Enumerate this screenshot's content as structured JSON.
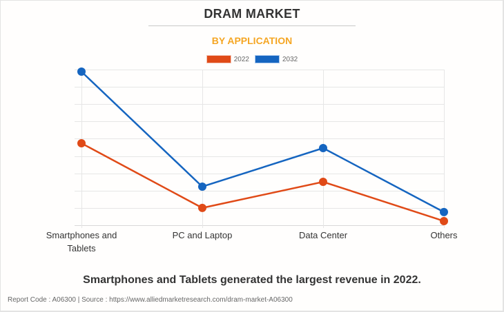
{
  "page": {
    "title": "DRAM MARKET",
    "subtitle": "BY APPLICATION",
    "summary": "Smartphones and Tablets generated the largest revenue in 2022.",
    "source_line": "Report Code : A06300  |  Source : https://www.alliedmarketresearch.com/dram-market-A06300"
  },
  "colors": {
    "series_2022": "#e04a17",
    "series_2032": "#1565c0",
    "title": "#333333",
    "subtitle": "#f5a623",
    "grid": "#e6e6e6"
  },
  "chart_data": {
    "type": "line",
    "title": "DRAM MARKET",
    "subtitle": "BY APPLICATION",
    "xlabel": "",
    "ylabel": "",
    "categories": [
      "Smartphones and Tablets",
      "PC and Laptop",
      "Data Center",
      "Others"
    ],
    "category_lines": [
      [
        "Smartphones and",
        "Tablets"
      ],
      [
        "PC and Laptop"
      ],
      [
        "Data Center"
      ],
      [
        "Others"
      ]
    ],
    "series": [
      {
        "name": "2022",
        "values": [
          4.74,
          1.0,
          2.51,
          0.24
        ]
      },
      {
        "name": "2032",
        "values": [
          8.88,
          2.23,
          4.46,
          0.76
        ]
      }
    ],
    "ylim": [
      0,
      9
    ],
    "y_gridlines": 9,
    "y_ticks_shown": false,
    "units_note": "relative units (no y-axis labels shown)",
    "grid": true,
    "legend_position": "top-center"
  }
}
